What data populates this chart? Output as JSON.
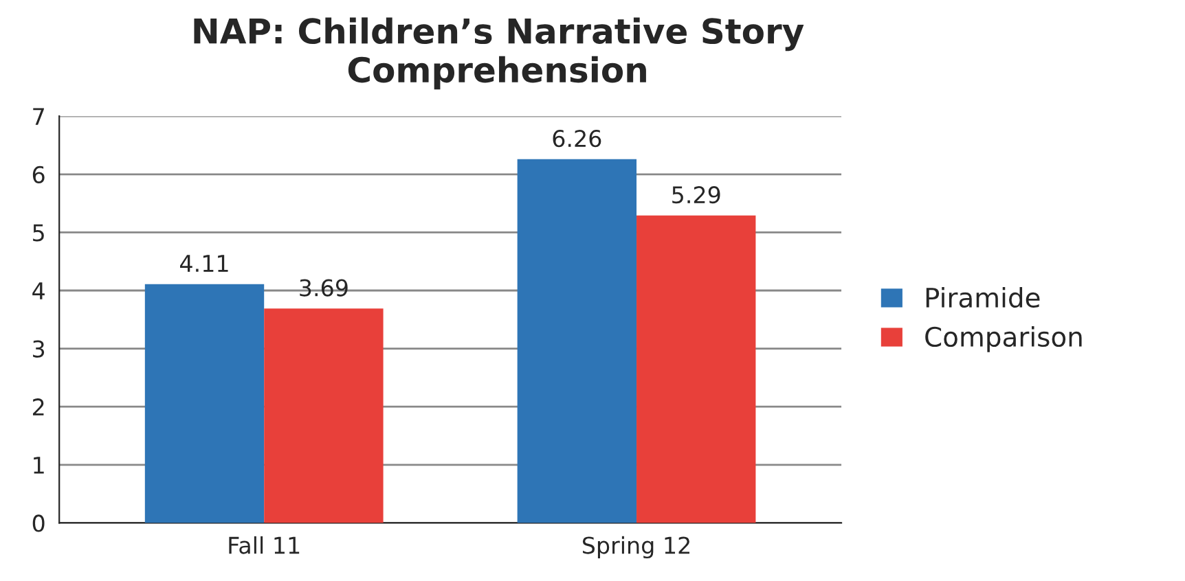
{
  "chart_data": {
    "type": "bar",
    "title": "NAP: Children’s Narrative Story\nComprehension",
    "categories": [
      "Fall 11",
      "Spring 12"
    ],
    "series": [
      {
        "name": "Piramide",
        "color": "#2e75b6",
        "values": [
          4.11,
          6.26
        ]
      },
      {
        "name": "Comparison",
        "color": "#e8403a",
        "values": [
          3.69,
          5.29
        ]
      }
    ],
    "ylim": [
      0,
      7
    ],
    "yticks": [
      0,
      1,
      2,
      3,
      4,
      5,
      6,
      7
    ],
    "grid": "y",
    "legend": "right",
    "data_labels": true
  }
}
